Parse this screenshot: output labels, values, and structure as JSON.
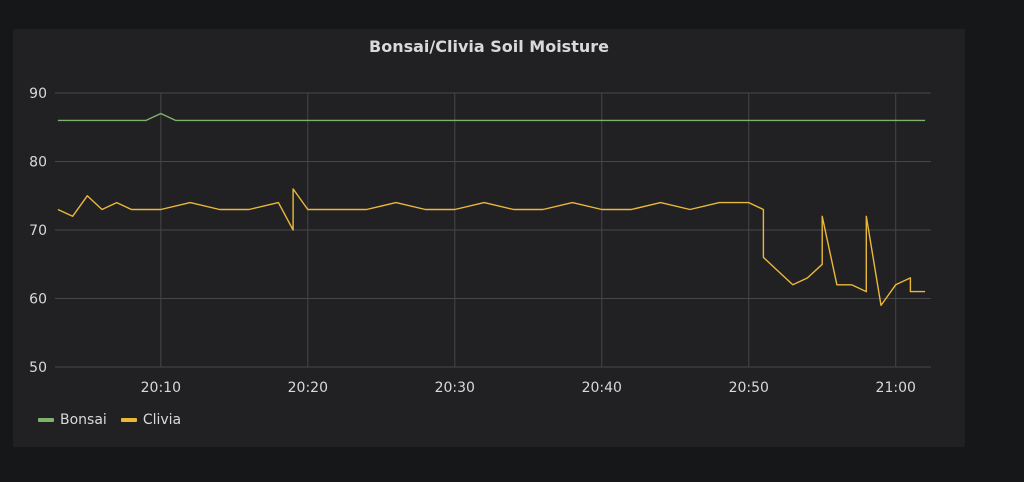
{
  "panel": {
    "title": "Bonsai/Clivia Soil Moisture"
  },
  "colors": {
    "Bonsai": "#7eb26d",
    "Clivia": "#eab839",
    "grid": "#464649",
    "text": "#d8d9da"
  },
  "chart_data": {
    "type": "line",
    "title": "Bonsai/Clivia Soil Moisture",
    "x_ticks": [
      "20:10",
      "20:20",
      "20:30",
      "20:40",
      "20:50",
      "21:00"
    ],
    "y_ticks": [
      50,
      60,
      70,
      80,
      90
    ],
    "ylim": [
      50,
      90
    ],
    "xlim": [
      "20:03",
      "21:02"
    ],
    "grid": true,
    "legend_position": "bottom-left",
    "series": [
      {
        "name": "Bonsai",
        "x": [
          "20:03",
          "20:06",
          "20:09",
          "20:10",
          "20:11",
          "20:15",
          "20:20",
          "20:25",
          "20:30",
          "20:35",
          "20:40",
          "20:45",
          "20:50",
          "20:55",
          "21:00",
          "21:02"
        ],
        "values": [
          86,
          86,
          86,
          87,
          86,
          86,
          86,
          86,
          86,
          86,
          86,
          86,
          86,
          86,
          86,
          86
        ]
      },
      {
        "name": "Clivia",
        "x": [
          "20:03",
          "20:04",
          "20:05",
          "20:06",
          "20:07",
          "20:08",
          "20:10",
          "20:12",
          "20:14",
          "20:16",
          "20:18",
          "20:19",
          "20:19",
          "20:20",
          "20:22",
          "20:24",
          "20:26",
          "20:28",
          "20:30",
          "20:32",
          "20:34",
          "20:36",
          "20:38",
          "20:40",
          "20:42",
          "20:44",
          "20:46",
          "20:48",
          "20:50",
          "20:51",
          "20:51",
          "20:52",
          "20:53",
          "20:54",
          "20:55",
          "20:55",
          "20:56",
          "20:57",
          "20:58",
          "20:58",
          "20:59",
          "21:00",
          "21:01",
          "21:01",
          "21:02"
        ],
        "values": [
          73,
          72,
          75,
          73,
          74,
          73,
          73,
          74,
          73,
          73,
          74,
          70,
          76,
          73,
          73,
          73,
          74,
          73,
          73,
          74,
          73,
          73,
          74,
          73,
          73,
          74,
          73,
          74,
          74,
          73,
          66,
          64,
          62,
          63,
          65,
          72,
          62,
          62,
          61,
          72,
          59,
          62,
          63,
          61,
          61
        ]
      }
    ]
  },
  "legend": [
    {
      "label": "Bonsai"
    },
    {
      "label": "Clivia"
    }
  ]
}
